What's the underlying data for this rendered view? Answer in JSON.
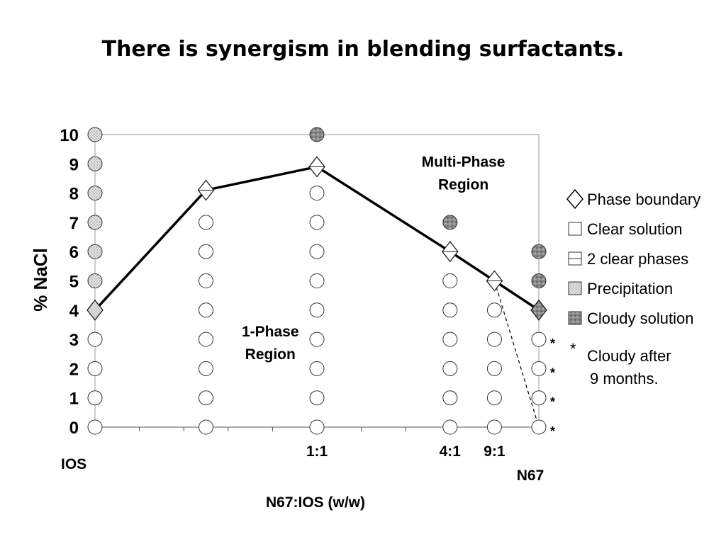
{
  "title": "There is synergism in blending surfactants.",
  "chart_data": {
    "type": "scatter",
    "ylabel": "% NaCl",
    "xlabel": "N67:IOS (w/w)",
    "ylim": [
      0,
      10
    ],
    "yticks": [
      "0",
      "1",
      "2",
      "3",
      "4",
      "5",
      "6",
      "7",
      "8",
      "9",
      "10"
    ],
    "xtick_labels": [
      {
        "label": "IOS",
        "pos": 0
      },
      {
        "label": "1:1",
        "pos": 0.5
      },
      {
        "label": "4:1",
        "pos": 0.8
      },
      {
        "label": "9:1",
        "pos": 0.9
      },
      {
        "label": "N67",
        "pos": 1.0
      }
    ],
    "minor_ticks": [
      0.1,
      0.2,
      0.3,
      0.4,
      0.5,
      0.6,
      0.7,
      0.8,
      0.9
    ],
    "columns": [
      {
        "x": 0,
        "points": [
          {
            "y": 0,
            "s": "clear"
          },
          {
            "y": 1,
            "s": "clear"
          },
          {
            "y": 2,
            "s": "clear"
          },
          {
            "y": 3,
            "s": "clear"
          },
          {
            "y": 5,
            "s": "precip"
          },
          {
            "y": 6,
            "s": "precip"
          },
          {
            "y": 7,
            "s": "precip"
          },
          {
            "y": 8,
            "s": "precip"
          },
          {
            "y": 9,
            "s": "precip"
          },
          {
            "y": 10,
            "s": "precip"
          }
        ]
      },
      {
        "x": 0.25,
        "points": [
          {
            "y": 0,
            "s": "clear"
          },
          {
            "y": 1,
            "s": "clear"
          },
          {
            "y": 2,
            "s": "clear"
          },
          {
            "y": 3,
            "s": "clear"
          },
          {
            "y": 4,
            "s": "clear"
          },
          {
            "y": 5,
            "s": "clear"
          },
          {
            "y": 6,
            "s": "clear"
          },
          {
            "y": 7,
            "s": "clear"
          }
        ]
      },
      {
        "x": 0.5,
        "points": [
          {
            "y": 0,
            "s": "clear"
          },
          {
            "y": 1,
            "s": "clear"
          },
          {
            "y": 2,
            "s": "clear"
          },
          {
            "y": 3,
            "s": "clear"
          },
          {
            "y": 4,
            "s": "clear"
          },
          {
            "y": 5,
            "s": "clear"
          },
          {
            "y": 6,
            "s": "clear"
          },
          {
            "y": 7,
            "s": "clear"
          },
          {
            "y": 8,
            "s": "clear"
          },
          {
            "y": 10,
            "s": "cloudy"
          }
        ]
      },
      {
        "x": 0.8,
        "points": [
          {
            "y": 0,
            "s": "clear"
          },
          {
            "y": 1,
            "s": "clear"
          },
          {
            "y": 2,
            "s": "clear"
          },
          {
            "y": 3,
            "s": "clear"
          },
          {
            "y": 4,
            "s": "clear"
          },
          {
            "y": 5,
            "s": "clear"
          },
          {
            "y": 7,
            "s": "cloudy"
          }
        ]
      },
      {
        "x": 0.9,
        "points": [
          {
            "y": 0,
            "s": "clear"
          },
          {
            "y": 1,
            "s": "clear"
          },
          {
            "y": 2,
            "s": "clear"
          },
          {
            "y": 3,
            "s": "clear"
          },
          {
            "y": 4,
            "s": "clear"
          }
        ]
      },
      {
        "x": 1.0,
        "points": [
          {
            "y": 0,
            "s": "clear",
            "star": true
          },
          {
            "y": 1,
            "s": "clear",
            "star": true
          },
          {
            "y": 2,
            "s": "clear",
            "star": true
          },
          {
            "y": 3,
            "s": "clear",
            "star": true
          },
          {
            "y": 5,
            "s": "cloudy"
          },
          {
            "y": 6,
            "s": "cloudy"
          }
        ]
      }
    ],
    "phase_boundary": [
      {
        "x": 0,
        "y": 4,
        "s": "precip"
      },
      {
        "x": 0.25,
        "y": 8.1,
        "s": "twophase"
      },
      {
        "x": 0.5,
        "y": 8.9,
        "s": "twophase"
      },
      {
        "x": 0.8,
        "y": 6,
        "s": "twophase"
      },
      {
        "x": 0.9,
        "y": 5,
        "s": "twophase"
      },
      {
        "x": 1.0,
        "y": 4,
        "s": "cloudy"
      }
    ],
    "dashed_line": [
      {
        "x": 0.9,
        "y": 5
      },
      {
        "x": 1.0,
        "y": 0
      }
    ],
    "region_labels": [
      {
        "lines": [
          "1-Phase",
          "Region"
        ],
        "x": 0.395,
        "y": 3.1
      },
      {
        "lines": [
          "Multi-Phase",
          "Region"
        ],
        "x": 0.83,
        "y": 8.9
      }
    ],
    "legend": {
      "placement": "right",
      "items": [
        {
          "symbol": "diamond",
          "label": "Phase boundary"
        },
        {
          "symbol": "square-clear",
          "label": "Clear solution"
        },
        {
          "symbol": "square-twophase",
          "label": "2 clear phases"
        },
        {
          "symbol": "square-precip",
          "label": "Precipitation"
        },
        {
          "symbol": "square-cloudy",
          "label": "Cloudy solution"
        }
      ],
      "note": {
        "marker": "*",
        "lines": [
          "Cloudy after",
          "9 months."
        ]
      }
    },
    "colors": {
      "clear": "#ffffff",
      "precip": "#d6d6d6",
      "cloudy": "#8c8c8c",
      "line": "#000000"
    }
  }
}
